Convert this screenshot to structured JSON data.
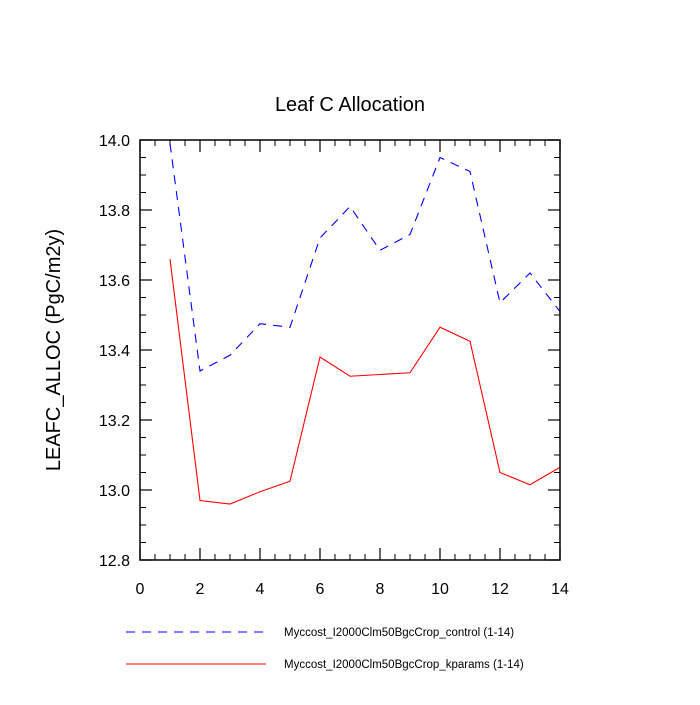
{
  "chart_data": {
    "type": "line",
    "title": "Leaf C Allocation",
    "xlabel": "",
    "ylabel": "LEAFC_ALLOC  (PgC/m2y)",
    "xlim": [
      0,
      14
    ],
    "ylim": [
      12.8,
      14.0
    ],
    "xticks": [
      0,
      2,
      4,
      6,
      8,
      10,
      12,
      14
    ],
    "xtick_labels": [
      "0",
      "2",
      "4",
      "6",
      "8",
      "10",
      "12",
      "14"
    ],
    "yticks": [
      12.8,
      13.0,
      13.2,
      13.4,
      13.6,
      13.8,
      14.0
    ],
    "ytick_labels": [
      "12.8",
      "13.0",
      "13.2",
      "13.4",
      "13.6",
      "13.8",
      "14.0"
    ],
    "x": [
      1,
      2,
      3,
      4,
      5,
      6,
      7,
      8,
      9,
      10,
      11,
      12,
      13,
      14
    ],
    "series": [
      {
        "name": "Myccost_I2000Clm50BgcCrop_control (1-14)",
        "color": "#0000ff",
        "dash": "dashed",
        "values": [
          13.99,
          13.34,
          13.385,
          13.475,
          13.465,
          13.72,
          13.81,
          13.685,
          13.73,
          13.95,
          13.91,
          13.535,
          13.62,
          13.51
        ]
      },
      {
        "name": "Myccost_I2000Clm50BgcCrop_kparams (1-14)",
        "color": "#ff0000",
        "dash": "solid",
        "values": [
          13.66,
          12.97,
          12.96,
          12.995,
          13.025,
          13.38,
          13.325,
          13.33,
          13.335,
          13.465,
          13.425,
          13.05,
          13.015,
          13.065
        ]
      }
    ],
    "legend_position": "bottom",
    "grid": false
  }
}
